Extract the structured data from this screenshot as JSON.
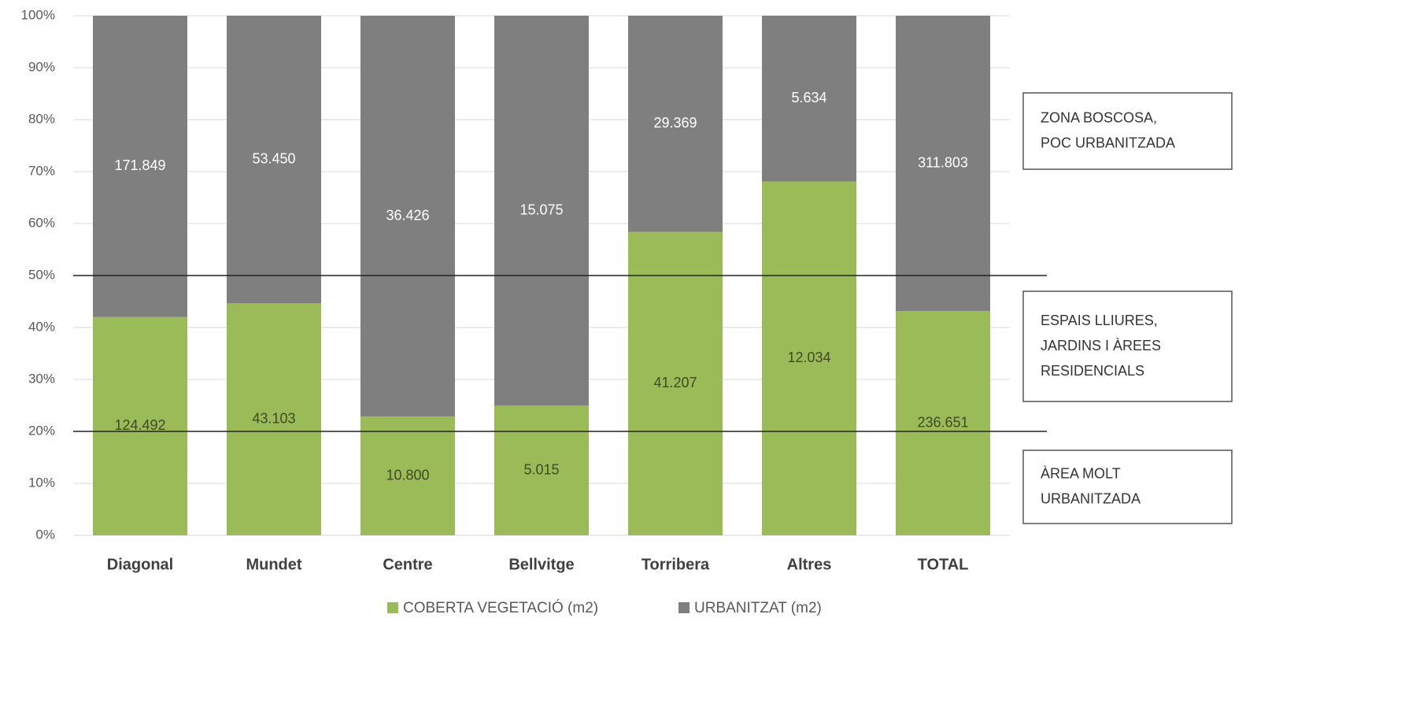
{
  "chart_data": {
    "type": "bar",
    "stacking": "percent",
    "categories": [
      "Diagonal",
      "Mundet",
      "Centre",
      "Bellvitge",
      "Torribera",
      "Altres",
      "TOTAL"
    ],
    "series": [
      {
        "name": "COBERTA VEGETACIÓ (m2)",
        "color": "#9bbb59",
        "label_color": "#3f4a25",
        "values": [
          124492,
          43103,
          10800,
          5015,
          41207,
          12034,
          236651
        ],
        "value_labels": [
          "124.492",
          "43.103",
          "10.800",
          "5.015",
          "41.207",
          "12.034",
          "236.651"
        ]
      },
      {
        "name": "URBANITZAT (m2)",
        "color": "#7f7f7f",
        "label_color": "#ffffff",
        "values": [
          171849,
          53450,
          36426,
          15075,
          29369,
          5634,
          311803
        ],
        "value_labels": [
          "171.849",
          "53.450",
          "36.426",
          "15.075",
          "29.369",
          "5.634",
          "311.803"
        ]
      }
    ],
    "ylim": [
      0,
      100
    ],
    "yticks": [
      {
        "value": 0,
        "label": "0%"
      },
      {
        "value": 10,
        "label": "10%"
      },
      {
        "value": 20,
        "label": "20%"
      },
      {
        "value": 30,
        "label": "30%"
      },
      {
        "value": 40,
        "label": "40%"
      },
      {
        "value": 50,
        "label": "50%"
      },
      {
        "value": 60,
        "label": "60%"
      },
      {
        "value": 70,
        "label": "70%"
      },
      {
        "value": 80,
        "label": "80%"
      },
      {
        "value": 90,
        "label": "90%"
      },
      {
        "value": 100,
        "label": "100%"
      }
    ],
    "grid": true,
    "reference_lines": [
      50,
      20
    ],
    "annotations": [
      {
        "lines": [
          "ZONA BOSCOSA,",
          "POC URBANITZADA"
        ]
      },
      {
        "lines": [
          "ESPAIS LLIURES,",
          "JARDINS I ÀREES",
          "RESIDENCIALS"
        ]
      },
      {
        "lines": [
          "ÀREA MOLT",
          "URBANITZADA"
        ]
      }
    ],
    "legend": "bottom"
  }
}
